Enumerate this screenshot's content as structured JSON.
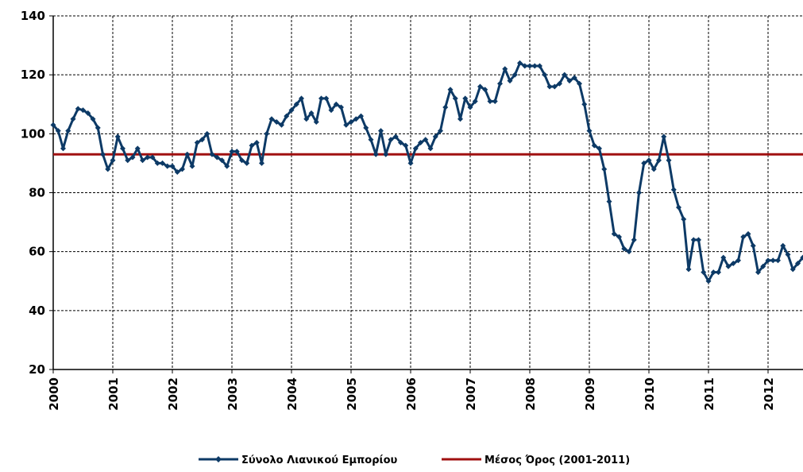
{
  "chart_data": {
    "type": "line",
    "categories": [
      "2000",
      null,
      null,
      null,
      null,
      null,
      null,
      null,
      null,
      null,
      null,
      null,
      "2001",
      null,
      null,
      null,
      null,
      null,
      null,
      null,
      null,
      null,
      null,
      null,
      "2002",
      null,
      null,
      null,
      null,
      null,
      null,
      null,
      null,
      null,
      null,
      null,
      "2003",
      null,
      null,
      null,
      null,
      null,
      null,
      null,
      null,
      null,
      null,
      null,
      "2004",
      null,
      null,
      null,
      null,
      null,
      null,
      null,
      null,
      null,
      null,
      null,
      "2005",
      null,
      null,
      null,
      null,
      null,
      null,
      null,
      null,
      null,
      null,
      null,
      "2006",
      null,
      null,
      null,
      null,
      null,
      null,
      null,
      null,
      null,
      null,
      null,
      "2007",
      null,
      null,
      null,
      null,
      null,
      null,
      null,
      null,
      null,
      null,
      null,
      "2008",
      null,
      null,
      null,
      null,
      null,
      null,
      null,
      null,
      null,
      null,
      null,
      "2009",
      null,
      null,
      null,
      null,
      null,
      null,
      null,
      null,
      null,
      null,
      null,
      "2010",
      null,
      null,
      null,
      null,
      null,
      null,
      null,
      null,
      null,
      null,
      null,
      "2011",
      null,
      null,
      null,
      null,
      null,
      null,
      null,
      null,
      null,
      null,
      null,
      "2012",
      null,
      null,
      null,
      null,
      null,
      null,
      null
    ],
    "series": [
      {
        "name": "Σύνολο Λιανικού Εμπορίου",
        "color": "#0d3a66",
        "values": [
          103,
          101,
          95,
          101,
          105,
          108.5,
          108,
          107,
          105,
          102,
          93,
          88,
          91,
          99,
          95,
          91,
          92,
          95,
          91,
          92,
          92,
          90,
          90,
          89,
          89,
          87,
          88,
          93,
          89,
          97,
          98,
          100,
          93,
          92,
          91,
          89,
          94,
          94,
          91,
          90,
          96,
          97,
          90,
          100,
          105,
          104,
          103,
          106,
          108,
          110,
          112,
          105,
          107,
          104,
          112,
          112,
          108,
          110,
          109,
          103,
          104,
          105,
          106,
          102,
          98,
          93,
          101,
          93,
          98,
          99,
          97,
          96,
          90,
          95,
          97,
          98,
          95,
          99,
          101,
          109,
          115,
          112,
          105,
          112,
          109,
          111,
          116,
          115,
          111,
          111,
          117,
          122,
          118,
          120,
          124,
          123,
          123,
          123,
          123,
          120,
          116,
          116,
          117,
          120,
          118,
          119,
          117,
          110,
          101,
          96,
          95,
          88,
          77,
          66,
          65,
          61,
          60,
          64,
          80,
          90,
          91,
          88,
          91,
          99,
          91,
          81,
          75,
          71,
          54,
          64,
          64,
          53,
          50,
          53,
          53,
          58,
          55,
          56,
          57,
          65,
          66,
          62,
          53,
          55,
          57,
          57,
          57,
          62,
          59,
          54,
          56,
          58
        ]
      }
    ],
    "reference_line": {
      "name": "Μέσος Όρος (2001-2011)",
      "color": "#a01010",
      "value": 93
    },
    "ylim": [
      20,
      140
    ],
    "yticks": [
      20,
      40,
      60,
      80,
      100,
      120,
      140
    ],
    "grid": true
  }
}
